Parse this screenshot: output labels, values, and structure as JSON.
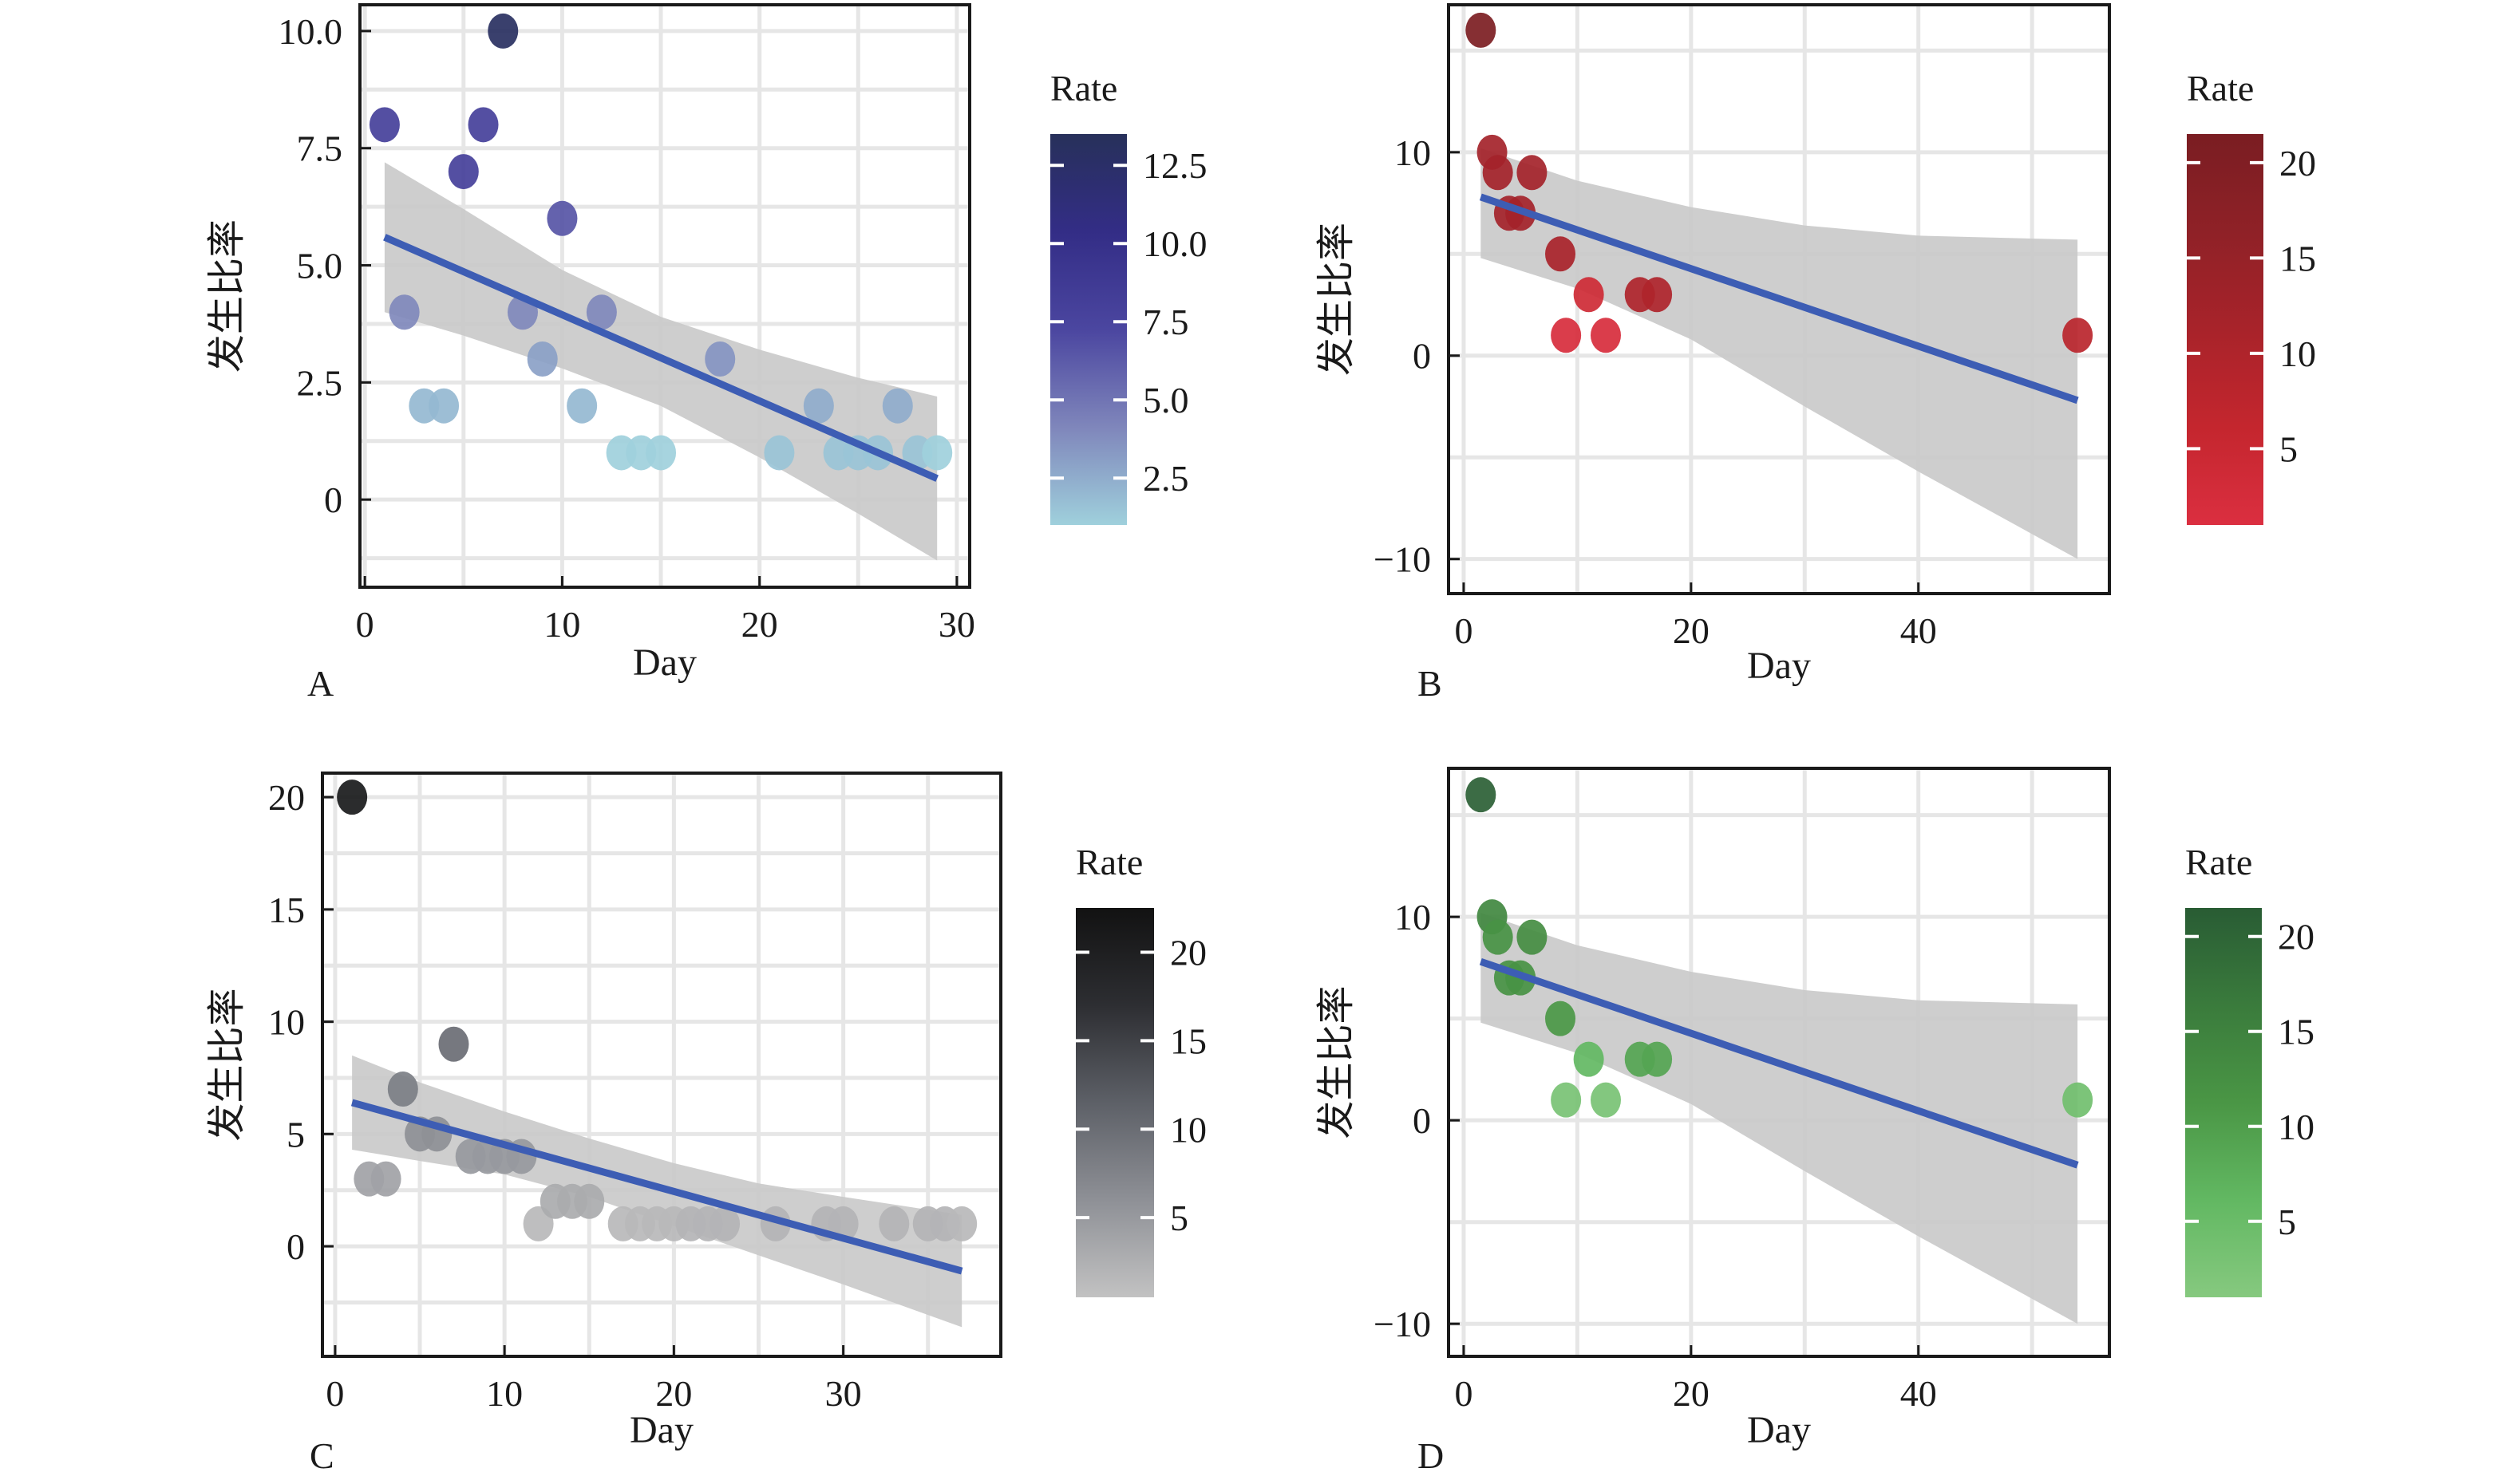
{
  "figure": {
    "panel_letters": [
      "A",
      "B",
      "C",
      "D"
    ]
  },
  "chart_data": [
    {
      "panel": "A",
      "type": "scatter",
      "title": "",
      "xlabel": "Day",
      "ylabel": "发生比率",
      "xlim": [
        -0.25,
        30.65
      ],
      "ylim": [
        -1.87,
        10.56
      ],
      "xticks": [
        0,
        10,
        20,
        30
      ],
      "xtick_labels": [
        "0",
        "10",
        "20",
        "30"
      ],
      "yticks": [
        0,
        2.5,
        5.0,
        7.5,
        10.0
      ],
      "ytick_labels": [
        "0",
        "2.5",
        "5.0",
        "7.5",
        "10.0"
      ],
      "grid": true,
      "points": [
        {
          "x": 1,
          "y": 8,
          "rate": 8
        },
        {
          "x": 2,
          "y": 4,
          "rate": 4
        },
        {
          "x": 3,
          "y": 2,
          "rate": 2
        },
        {
          "x": 4,
          "y": 2,
          "rate": 2
        },
        {
          "x": 5,
          "y": 7,
          "rate": 8
        },
        {
          "x": 6,
          "y": 8,
          "rate": 8
        },
        {
          "x": 7,
          "y": 10,
          "rate": 13
        },
        {
          "x": 8,
          "y": 4,
          "rate": 4
        },
        {
          "x": 9,
          "y": 3,
          "rate": 3
        },
        {
          "x": 10,
          "y": 6,
          "rate": 6.5
        },
        {
          "x": 11,
          "y": 2,
          "rate": 2
        },
        {
          "x": 12,
          "y": 4,
          "rate": 4
        },
        {
          "x": 13,
          "y": 1,
          "rate": 1
        },
        {
          "x": 14,
          "y": 1,
          "rate": 1
        },
        {
          "x": 15,
          "y": 1,
          "rate": 1
        },
        {
          "x": 18,
          "y": 3,
          "rate": 3.5
        },
        {
          "x": 21,
          "y": 1,
          "rate": 1.5
        },
        {
          "x": 23,
          "y": 2,
          "rate": 2.5
        },
        {
          "x": 24,
          "y": 1,
          "rate": 1.5
        },
        {
          "x": 25,
          "y": 1,
          "rate": 1.5
        },
        {
          "x": 26,
          "y": 1,
          "rate": 1.5
        },
        {
          "x": 27,
          "y": 2,
          "rate": 2.5
        },
        {
          "x": 28,
          "y": 1,
          "rate": 1.5
        },
        {
          "x": 29,
          "y": 1,
          "rate": 1
        }
      ],
      "fit": {
        "x": [
          1,
          29
        ],
        "y": [
          5.6,
          0.45
        ]
      },
      "ci_band": {
        "x": [
          1,
          5,
          10,
          15,
          20,
          25,
          29
        ],
        "lower": [
          4.0,
          3.5,
          2.8,
          2.0,
          0.9,
          -0.3,
          -1.3
        ],
        "upper": [
          7.2,
          6.2,
          4.9,
          3.9,
          3.2,
          2.6,
          2.2
        ]
      },
      "legend": {
        "title": "Rate",
        "type": "colorbar",
        "range": [
          1,
          13.5
        ],
        "ticks": [
          2.5,
          5.0,
          7.5,
          10.0,
          12.5
        ],
        "tick_labels": [
          "2.5",
          "5.0",
          "7.5",
          "10.0",
          "12.5"
        ],
        "colors": [
          "#9fd0dc",
          "#7f86bb",
          "#4b46a0",
          "#332d86",
          "#27305a"
        ],
        "placement": "right"
      }
    },
    {
      "panel": "B",
      "type": "scatter",
      "title": "",
      "xlabel": "Day",
      "ylabel": "发生比率",
      "xlim": [
        -1.33,
        56.8
      ],
      "ylim": [
        -11.7,
        17.25
      ],
      "xticks": [
        0,
        20,
        40
      ],
      "xtick_labels": [
        "0",
        "20",
        "40"
      ],
      "yticks": [
        -10,
        0,
        10
      ],
      "ytick_labels": [
        "−10",
        "0",
        "10"
      ],
      "grid": true,
      "points": [
        {
          "x": 1.5,
          "y": 16,
          "rate": 21
        },
        {
          "x": 2.5,
          "y": 10,
          "rate": 12
        },
        {
          "x": 3,
          "y": 9,
          "rate": 12
        },
        {
          "x": 4,
          "y": 7,
          "rate": 12
        },
        {
          "x": 5,
          "y": 7,
          "rate": 12
        },
        {
          "x": 6,
          "y": 9,
          "rate": 12
        },
        {
          "x": 8.5,
          "y": 5,
          "rate": 11
        },
        {
          "x": 9,
          "y": 1,
          "rate": 2
        },
        {
          "x": 11,
          "y": 3,
          "rate": 4
        },
        {
          "x": 12.5,
          "y": 1,
          "rate": 2
        },
        {
          "x": 15.5,
          "y": 3,
          "rate": 10
        },
        {
          "x": 17,
          "y": 3,
          "rate": 10
        },
        {
          "x": 54,
          "y": 1,
          "rate": 8
        }
      ],
      "fit": {
        "x": [
          1.5,
          54
        ],
        "y": [
          7.8,
          -2.2
        ]
      },
      "ci_band": {
        "x": [
          1.5,
          10,
          20,
          30,
          40,
          54
        ],
        "lower": [
          4.8,
          3.3,
          0.8,
          -2.5,
          -5.7,
          -10.0
        ],
        "upper": [
          10.2,
          8.6,
          7.3,
          6.4,
          5.9,
          5.7
        ]
      },
      "legend": {
        "title": "Rate",
        "type": "colorbar",
        "range": [
          1,
          21.5
        ],
        "ticks": [
          5,
          10,
          15,
          20
        ],
        "tick_labels": [
          "5",
          "10",
          "15",
          "20"
        ],
        "colors": [
          "#db2f40",
          "#c4262e",
          "#a8232a",
          "#8f2127",
          "#7a1d22"
        ],
        "placement": "right"
      }
    },
    {
      "panel": "C",
      "type": "scatter",
      "title": "",
      "xlabel": "Day",
      "ylabel": "发生比率",
      "xlim": [
        -0.75,
        39.3
      ],
      "ylim": [
        -4.9,
        21.07
      ],
      "xticks": [
        0,
        10,
        20,
        30
      ],
      "xtick_labels": [
        "0",
        "10",
        "20",
        "30"
      ],
      "yticks": [
        0,
        5,
        10,
        15,
        20
      ],
      "ytick_labels": [
        "0",
        "5",
        "10",
        "15",
        "20"
      ],
      "grid": true,
      "points": [
        {
          "x": 1,
          "y": 20,
          "rate": 21
        },
        {
          "x": 2,
          "y": 3,
          "rate": 4
        },
        {
          "x": 3,
          "y": 3,
          "rate": 4
        },
        {
          "x": 4,
          "y": 7,
          "rate": 8
        },
        {
          "x": 5,
          "y": 5,
          "rate": 6
        },
        {
          "x": 6,
          "y": 5,
          "rate": 6
        },
        {
          "x": 7,
          "y": 9,
          "rate": 10
        },
        {
          "x": 8,
          "y": 4,
          "rate": 5
        },
        {
          "x": 9,
          "y": 4,
          "rate": 5
        },
        {
          "x": 10,
          "y": 4,
          "rate": 5
        },
        {
          "x": 11,
          "y": 4,
          "rate": 5
        },
        {
          "x": 12,
          "y": 1,
          "rate": 1.5
        },
        {
          "x": 13,
          "y": 2,
          "rate": 3
        },
        {
          "x": 14,
          "y": 2,
          "rate": 3
        },
        {
          "x": 15,
          "y": 2,
          "rate": 3
        },
        {
          "x": 17,
          "y": 1,
          "rate": 1.5
        },
        {
          "x": 18,
          "y": 1,
          "rate": 1.5
        },
        {
          "x": 19,
          "y": 1,
          "rate": 1.5
        },
        {
          "x": 20,
          "y": 1,
          "rate": 1.5
        },
        {
          "x": 21,
          "y": 1,
          "rate": 2
        },
        {
          "x": 22,
          "y": 1,
          "rate": 2
        },
        {
          "x": 23,
          "y": 1,
          "rate": 2
        },
        {
          "x": 26,
          "y": 1,
          "rate": 2
        },
        {
          "x": 29,
          "y": 1,
          "rate": 2
        },
        {
          "x": 30,
          "y": 1,
          "rate": 2
        },
        {
          "x": 33,
          "y": 1,
          "rate": 2
        },
        {
          "x": 35,
          "y": 1,
          "rate": 2
        },
        {
          "x": 36,
          "y": 1,
          "rate": 2
        },
        {
          "x": 37,
          "y": 1,
          "rate": 1.5
        }
      ],
      "fit": {
        "x": [
          1,
          37
        ],
        "y": [
          6.4,
          -1.1
        ]
      },
      "ci_band": {
        "x": [
          1,
          5,
          10,
          15,
          20,
          25,
          30,
          37
        ],
        "lower": [
          4.3,
          3.8,
          3.2,
          2.2,
          0.9,
          -0.4,
          -1.7,
          -3.6
        ],
        "upper": [
          8.5,
          7.3,
          6.0,
          4.8,
          3.7,
          2.8,
          2.2,
          1.4
        ]
      },
      "legend": {
        "title": "Rate",
        "type": "colorbar",
        "range": [
          0.5,
          22.5
        ],
        "ticks": [
          5,
          10,
          15,
          20
        ],
        "tick_labels": [
          "5",
          "10",
          "15",
          "20"
        ],
        "colors": [
          "#c2c2c2",
          "#8e9096",
          "#5d6067",
          "#2d2e32",
          "#121212"
        ],
        "placement": "right"
      }
    },
    {
      "panel": "D",
      "type": "scatter",
      "title": "",
      "xlabel": "Day",
      "ylabel": "发生比率",
      "xlim": [
        -1.33,
        56.8
      ],
      "ylim": [
        -11.6,
        17.3
      ],
      "xticks": [
        0,
        20,
        40
      ],
      "xtick_labels": [
        "0",
        "20",
        "40"
      ],
      "yticks": [
        -10,
        0,
        10
      ],
      "ytick_labels": [
        "−10",
        "0",
        "10"
      ],
      "grid": true,
      "points": [
        {
          "x": 1.5,
          "y": 16,
          "rate": 21
        },
        {
          "x": 2.5,
          "y": 10,
          "rate": 14
        },
        {
          "x": 3,
          "y": 9,
          "rate": 12
        },
        {
          "x": 4,
          "y": 7,
          "rate": 12
        },
        {
          "x": 5,
          "y": 7,
          "rate": 12
        },
        {
          "x": 6,
          "y": 9,
          "rate": 13
        },
        {
          "x": 8.5,
          "y": 5,
          "rate": 11
        },
        {
          "x": 9,
          "y": 1,
          "rate": 3
        },
        {
          "x": 11,
          "y": 3,
          "rate": 6
        },
        {
          "x": 12.5,
          "y": 1,
          "rate": 3
        },
        {
          "x": 15.5,
          "y": 3,
          "rate": 9
        },
        {
          "x": 17,
          "y": 3,
          "rate": 9
        },
        {
          "x": 54,
          "y": 1,
          "rate": 4
        }
      ],
      "fit": {
        "x": [
          1.5,
          54
        ],
        "y": [
          7.8,
          -2.2
        ]
      },
      "ci_band": {
        "x": [
          1.5,
          10,
          20,
          30,
          40,
          54
        ],
        "lower": [
          4.8,
          3.3,
          0.8,
          -2.5,
          -5.7,
          -10.0
        ],
        "upper": [
          10.2,
          8.6,
          7.3,
          6.4,
          5.9,
          5.7
        ]
      },
      "legend": {
        "title": "Rate",
        "type": "colorbar",
        "range": [
          1,
          21.5
        ],
        "ticks": [
          5,
          10,
          15,
          20
        ],
        "tick_labels": [
          "5",
          "10",
          "15",
          "20"
        ],
        "colors": [
          "#86c97f",
          "#62b862",
          "#4a9645",
          "#3a7b3c",
          "#295c34"
        ],
        "placement": "right"
      }
    }
  ],
  "style": {
    "fit_line_color": "#3d5db4",
    "ci_band_color": "#c9c9c9",
    "grid_color": "#e6e6e6"
  }
}
